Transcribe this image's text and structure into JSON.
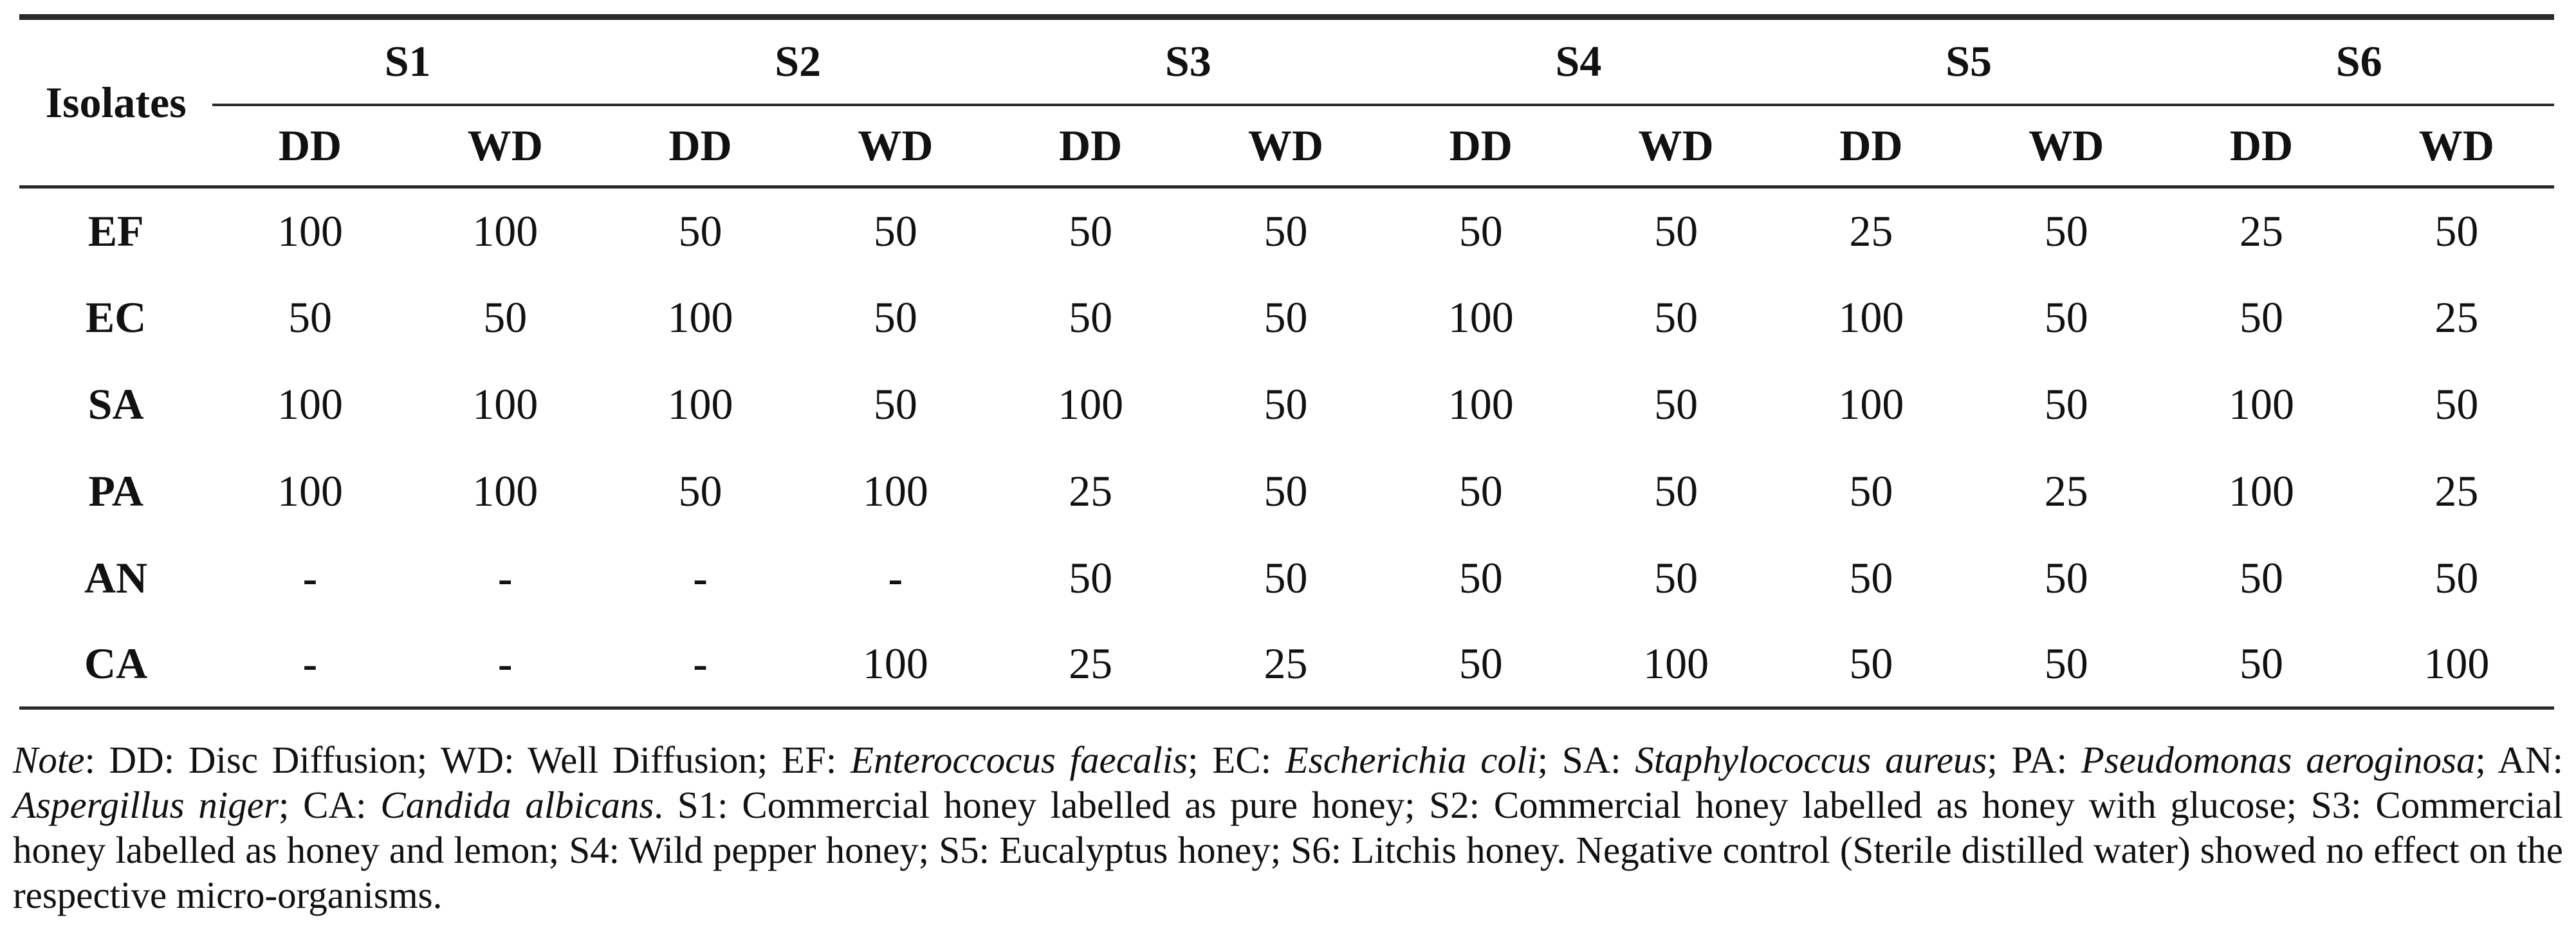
{
  "colors": {
    "background": "#ffffff",
    "text": "#111111",
    "rule": "#2a2a2a"
  },
  "table": {
    "row_header_label": "Isolates",
    "sample_groups": [
      "S1",
      "S2",
      "S3",
      "S4",
      "S5",
      "S6"
    ],
    "method_labels": [
      "DD",
      "WD"
    ],
    "rows": [
      {
        "isolate": "EF",
        "values": [
          "100",
          "100",
          "50",
          "50",
          "50",
          "50",
          "50",
          "50",
          "25",
          "50",
          "25",
          "50"
        ]
      },
      {
        "isolate": "EC",
        "values": [
          "50",
          "50",
          "100",
          "50",
          "50",
          "50",
          "100",
          "50",
          "100",
          "50",
          "50",
          "25"
        ]
      },
      {
        "isolate": "SA",
        "values": [
          "100",
          "100",
          "100",
          "50",
          "100",
          "50",
          "100",
          "50",
          "100",
          "50",
          "100",
          "50"
        ]
      },
      {
        "isolate": "PA",
        "values": [
          "100",
          "100",
          "50",
          "100",
          "25",
          "50",
          "50",
          "50",
          "50",
          "25",
          "100",
          "25"
        ]
      },
      {
        "isolate": "AN",
        "values": [
          "-",
          "-",
          "-",
          "-",
          "50",
          "50",
          "50",
          "50",
          "50",
          "50",
          "50",
          "50"
        ]
      },
      {
        "isolate": "CA",
        "values": [
          "-",
          "-",
          "-",
          "100",
          "25",
          "25",
          "50",
          "100",
          "50",
          "50",
          "50",
          "100"
        ]
      }
    ]
  },
  "note": {
    "segments": [
      {
        "text": "Note",
        "italic": true
      },
      {
        "text": ": DD: Disc Diffusion; WD: Well Diffusion; EF: ",
        "italic": false
      },
      {
        "text": "Enteroccocus faecalis",
        "italic": true
      },
      {
        "text": "; EC: ",
        "italic": false
      },
      {
        "text": "Escherichia coli",
        "italic": true
      },
      {
        "text": "; SA: ",
        "italic": false
      },
      {
        "text": "Staphylococcus aureus",
        "italic": true
      },
      {
        "text": "; PA: ",
        "italic": false
      },
      {
        "text": "Pseudomonas aeroginosa",
        "italic": true
      },
      {
        "text": "; AN: ",
        "italic": false
      },
      {
        "text": "Aspergillus niger",
        "italic": true
      },
      {
        "text": "; CA: ",
        "italic": false
      },
      {
        "text": "Candida albicans",
        "italic": true
      },
      {
        "text": ". S1: Commercial honey labelled as pure honey; S2: Commercial honey labelled as honey with glucose; S3: Commercial honey labelled as honey and lemon; S4: Wild pepper honey; S5: Eucalyptus honey; S6: Litchis honey. Negative control (Sterile distilled water) showed no effect on the respective micro-organisms.",
        "italic": false
      }
    ]
  }
}
